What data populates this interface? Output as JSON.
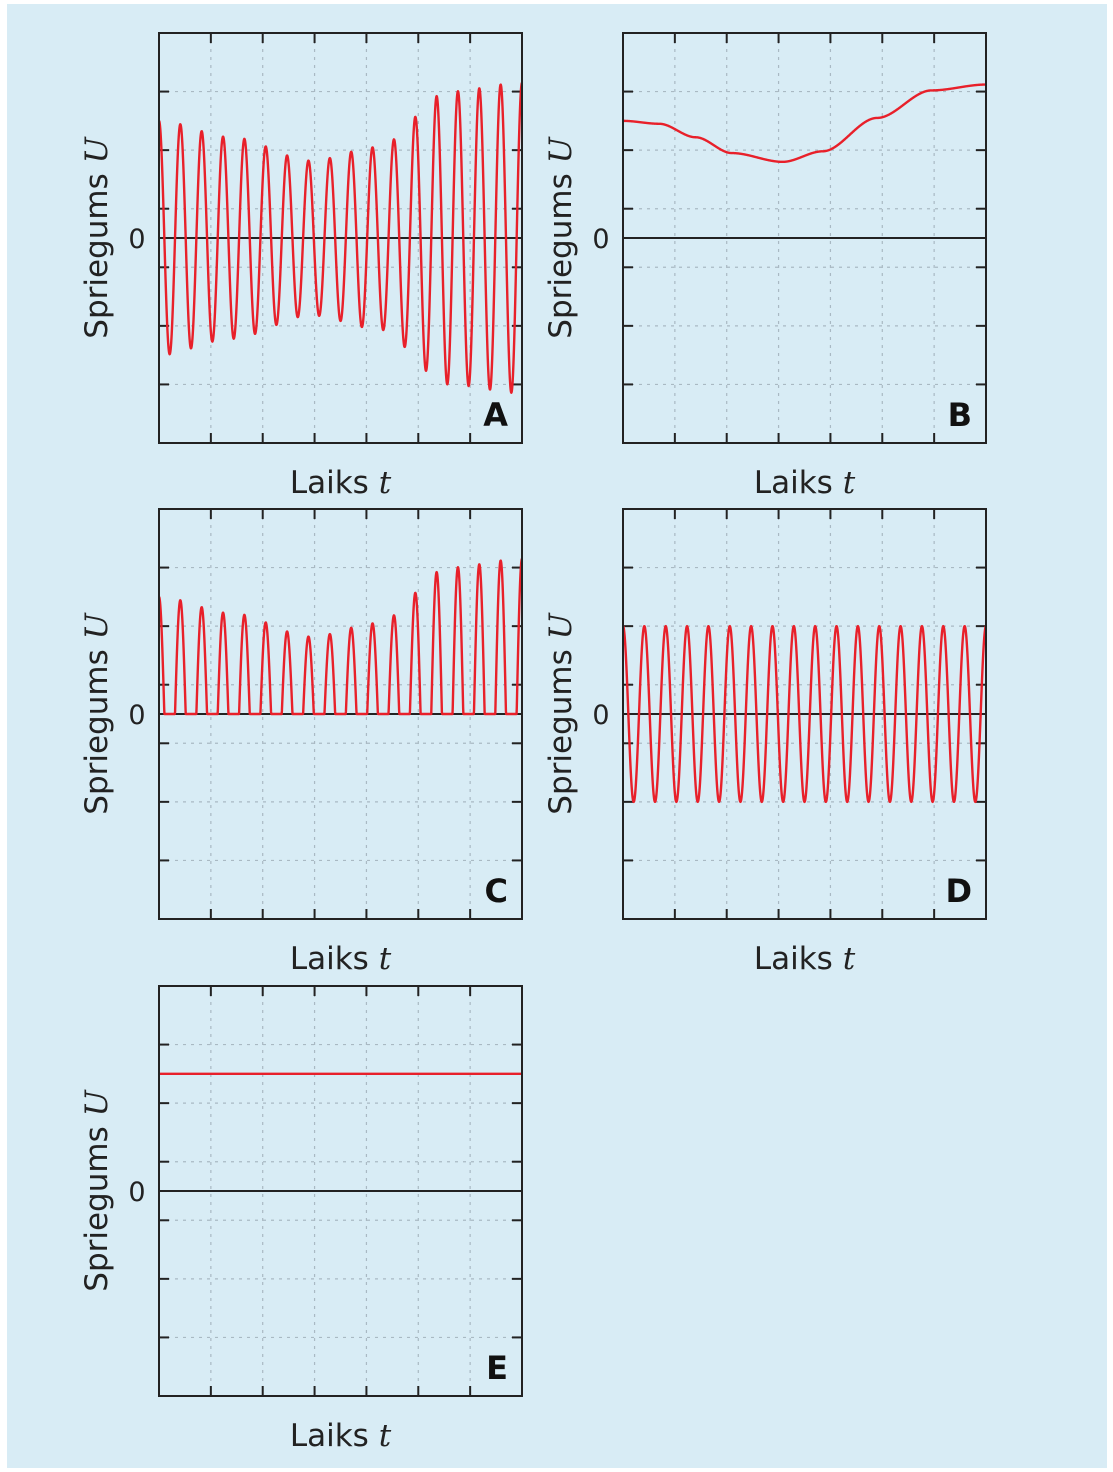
{
  "colors": {
    "background": "#d8ecf5",
    "curve": "#e8202a",
    "axis": "#222222",
    "grid": "#a9b9c3"
  },
  "chart_data": [
    {
      "type": "line",
      "panel_label": "A",
      "xlabel": "Laiks",
      "xlabel_var": "t",
      "ylabel": "Spriegums",
      "ylabel_var": "U",
      "y_zero_label": "0",
      "ylim": [
        -3.5,
        3.5
      ],
      "grid": true,
      "signal": "amplitude-modulated sine, full wave",
      "cycles": 17,
      "envelope_t": [
        0,
        0.2,
        0.42,
        0.6,
        0.8,
        1.0
      ],
      "envelope_amplitude": [
        2.0,
        1.72,
        1.32,
        1.55,
        2.5,
        2.65
      ]
    },
    {
      "type": "line",
      "panel_label": "B",
      "xlabel": "Laiks",
      "xlabel_var": "t",
      "ylabel": "Spriegums",
      "ylabel_var": "U",
      "y_zero_label": "0",
      "ylim": [
        -3.5,
        3.5
      ],
      "grid": true,
      "signal": "slowly varying positive voltage",
      "t": [
        0,
        0.1,
        0.2,
        0.3,
        0.44,
        0.55,
        0.7,
        0.85,
        1.0
      ],
      "values": [
        2.0,
        1.95,
        1.72,
        1.45,
        1.3,
        1.48,
        2.05,
        2.52,
        2.62
      ]
    },
    {
      "type": "line",
      "panel_label": "C",
      "xlabel": "Laiks",
      "xlabel_var": "t",
      "ylabel": "Spriegums",
      "ylabel_var": "U",
      "y_zero_label": "0",
      "ylim": [
        -3.5,
        3.5
      ],
      "grid": true,
      "signal": "rectified amplitude-modulated sine",
      "cycles": 17,
      "envelope_t": [
        0,
        0.2,
        0.42,
        0.6,
        0.8,
        1.0
      ],
      "envelope_amplitude": [
        2.0,
        1.72,
        1.32,
        1.55,
        2.5,
        2.65
      ]
    },
    {
      "type": "line",
      "panel_label": "D",
      "xlabel": "Laiks",
      "xlabel_var": "t",
      "ylabel": "Spriegums",
      "ylabel_var": "U",
      "y_zero_label": "0",
      "ylim": [
        -3.5,
        3.5
      ],
      "grid": true,
      "signal": "constant-amplitude sine",
      "cycles": 17,
      "amplitude": 1.5
    },
    {
      "type": "line",
      "panel_label": "E",
      "xlabel": "Laiks",
      "xlabel_var": "t",
      "ylabel": "Spriegums",
      "ylabel_var": "U",
      "y_zero_label": "0",
      "ylim": [
        -3.5,
        3.5
      ],
      "grid": true,
      "signal": "constant voltage",
      "t": [
        0,
        1
      ],
      "values": [
        2.0,
        2.0
      ]
    }
  ]
}
